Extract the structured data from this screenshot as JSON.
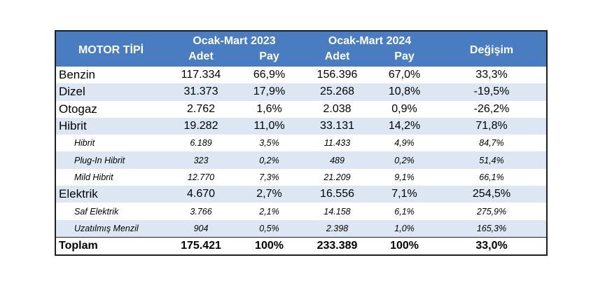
{
  "header": {
    "motor_tipi": "MOTOR TİPİ",
    "period1": "Ocak-Mart 2023",
    "period2": "Ocak-Mart 2024",
    "adet": "Adet",
    "pay": "Pay",
    "degisim": "Değişim"
  },
  "rows": [
    {
      "label": "Benzin",
      "a23": "117.334",
      "p23": "66,9%",
      "a24": "156.396",
      "p24": "67,0%",
      "chg": "33,3%"
    },
    {
      "label": "Dizel",
      "a23": "31.373",
      "p23": "17,9%",
      "a24": "25.268",
      "p24": "10,8%",
      "chg": "-19,5%"
    },
    {
      "label": "Otogaz",
      "a23": "2.762",
      "p23": "1,6%",
      "a24": "2.038",
      "p24": "0,9%",
      "chg": "-26,2%"
    },
    {
      "label": "Hibrit",
      "a23": "19.282",
      "p23": "11,0%",
      "a24": "33.131",
      "p24": "14,2%",
      "chg": "71,8%"
    },
    {
      "label": "Hibrit",
      "a23": "6.189",
      "p23": "3,5%",
      "a24": "11.433",
      "p24": "4,9%",
      "chg": "84,7%"
    },
    {
      "label": "Plug-In Hibrit",
      "a23": "323",
      "p23": "0,2%",
      "a24": "489",
      "p24": "0,2%",
      "chg": "51,4%"
    },
    {
      "label": "Mild Hibrit",
      "a23": "12.770",
      "p23": "7,3%",
      "a24": "21.209",
      "p24": "9,1%",
      "chg": "66,1%"
    },
    {
      "label": "Elektrik",
      "a23": "4.670",
      "p23": "2,7%",
      "a24": "16.556",
      "p24": "7,1%",
      "chg": "254,5%"
    },
    {
      "label": "Saf Elektrik",
      "a23": "3.766",
      "p23": "2,1%",
      "a24": "14.158",
      "p24": "6,1%",
      "chg": "275,9%"
    },
    {
      "label": "Uzatılmış Menzil",
      "a23": "904",
      "p23": "0,5%",
      "a24": "2.398",
      "p24": "1,0%",
      "chg": "165,3%"
    }
  ],
  "total": {
    "label": "Toplam",
    "a23": "175.421",
    "p23": "100%",
    "a24": "233.389",
    "p24": "100%",
    "chg": "33,0%"
  },
  "colors": {
    "header_bg": "#4a7cc2",
    "header_text": "#ffffff",
    "row_shade": "#dde7f3",
    "border": "#1f1f1f"
  }
}
